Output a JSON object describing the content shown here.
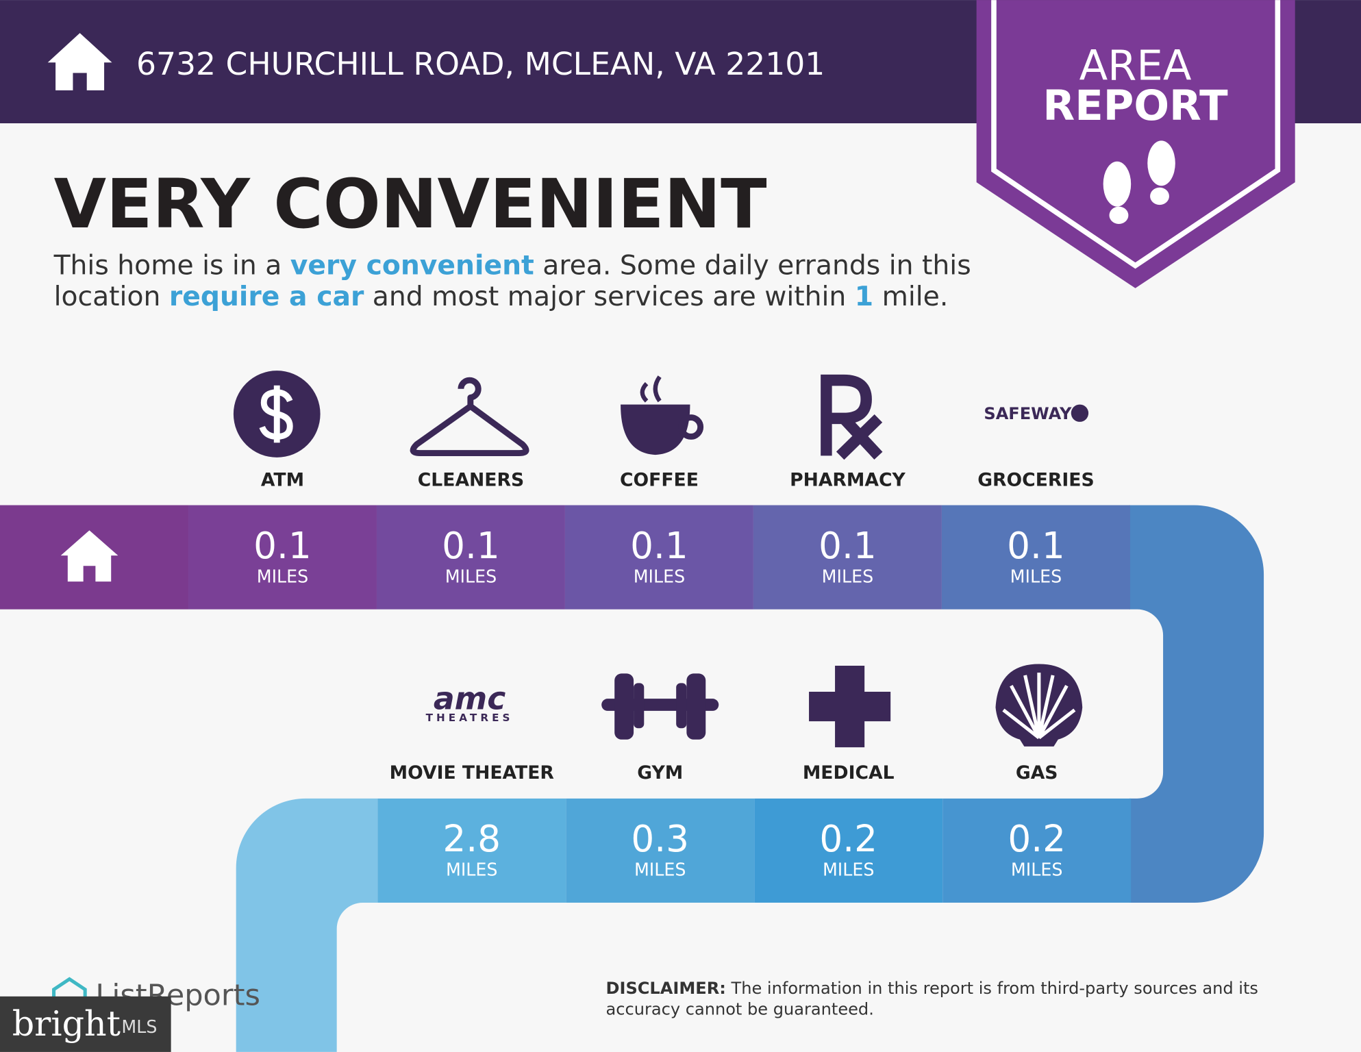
{
  "header": {
    "address": "6732 CHURCHILL ROAD, MCLEAN, VA 22101"
  },
  "badge": {
    "lines": [
      "AREA",
      "REPORT"
    ]
  },
  "headline": "VERY CONVENIENT",
  "description": {
    "lines": [
      [
        {
          "text": "This home is in a ",
          "highlight": false
        },
        {
          "text": "very convenient",
          "highlight": true
        },
        {
          "text": " area. Some daily errands in this",
          "highlight": false
        }
      ],
      [
        {
          "text": "location ",
          "highlight": false
        },
        {
          "text": "require a car",
          "highlight": true
        },
        {
          "text": " and most major services are within ",
          "highlight": false
        },
        {
          "text": "1",
          "highlight": true
        },
        {
          "text": " mile.",
          "highlight": false
        }
      ]
    ]
  },
  "services": [
    {
      "items": [
        {
          "label": "ATM",
          "distance": "0.1",
          "unit": "MILES"
        },
        {
          "label": "CLEANERS",
          "distance": "0.1",
          "unit": "MILES"
        },
        {
          "label": "COFFEE",
          "distance": "0.1",
          "unit": "MILES"
        },
        {
          "label": "PHARMACY",
          "distance": "0.1",
          "unit": "MILES"
        },
        {
          "label": "GROCERIES",
          "distance": "0.1",
          "unit": "MILES",
          "logo": "SAFEWAY"
        }
      ]
    },
    {
      "items": [
        {
          "label": "MOVIE THEATER",
          "distance": "2.8",
          "unit": "MILES",
          "logo": "amc",
          "logo_sub": "THEATRES"
        },
        {
          "label": "GYM",
          "distance": "0.3",
          "unit": "MILES"
        },
        {
          "label": "MEDICAL",
          "distance": "0.2",
          "unit": "MILES"
        },
        {
          "label": "GAS",
          "distance": "0.2",
          "unit": "MILES"
        }
      ]
    }
  ],
  "footer": {
    "brand": "ListReports",
    "watermark": "bright",
    "watermark_sub": "MLS",
    "disclaimer": {
      "label": "DISCLAIMER:",
      "lines": [
        " The information in this report is from third-party sources and its",
        "accuracy cannot be guaranteed."
      ]
    }
  }
}
